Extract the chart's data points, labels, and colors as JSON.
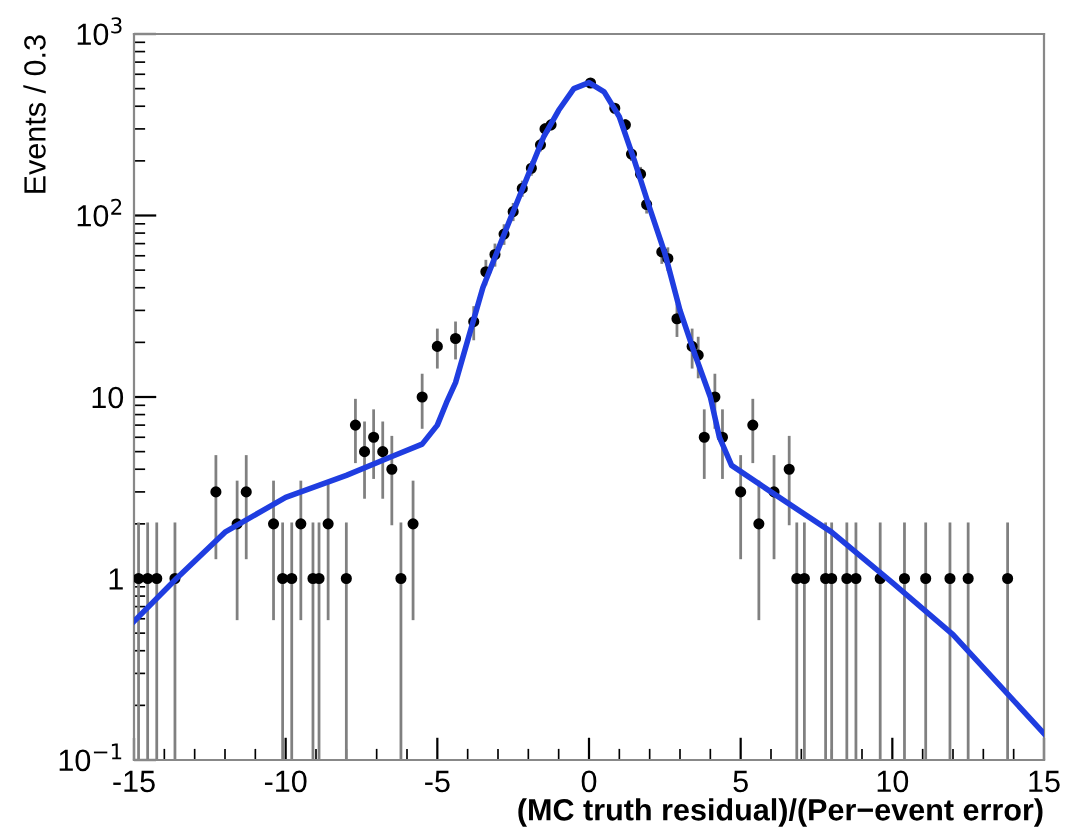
{
  "chart_data": {
    "type": "scatter",
    "xlabel": "(MC truth residual)/(Per−event error)",
    "ylabel": "Events / 0.3",
    "log": "y",
    "xlim": [
      -15,
      15
    ],
    "ylim": [
      0.1,
      1000
    ],
    "xticks": [
      -15,
      -10,
      -5,
      0,
      5,
      10,
      15
    ],
    "yticks": [
      {
        "value": 0.1,
        "label": "10$^{−1}$"
      },
      1,
      10,
      {
        "value": 100,
        "label": "10$^{2}$"
      },
      {
        "value": 1000,
        "label": "10$^{3}$"
      }
    ],
    "grid": false,
    "legend": false,
    "series": [
      {
        "color": "#000000",
        "marker": "circle",
        "x": [
          -14.85,
          -14.55,
          -14.25,
          -13.65,
          -12.3,
          -11.6,
          -11.3,
          -10.4,
          -10.1,
          -9.8,
          -9.5,
          -9.1,
          -8.9,
          -8.6,
          -8.0,
          -7.7,
          -7.4,
          -7.1,
          -6.8,
          -6.5,
          -6.2,
          -5.8,
          -5.5,
          -5.0,
          -4.4,
          -3.8,
          -3.4,
          -3.1,
          -2.8,
          -2.5,
          -2.2,
          -1.9,
          -1.6,
          -1.45,
          -1.25,
          0.05,
          0.85,
          1.2,
          1.4,
          1.7,
          1.9,
          2.4,
          2.6,
          2.9,
          3.4,
          3.6,
          4.15,
          3.8,
          4.4,
          5.0,
          5.4,
          5.6,
          6.1,
          6.6,
          6.85,
          7.1,
          7.8,
          8.0,
          8.5,
          8.8,
          9.6,
          10.4,
          11.1,
          11.9,
          12.5,
          13.8
        ],
        "values": [
          1,
          1,
          1,
          1,
          3,
          2,
          3,
          2,
          1,
          1,
          2,
          1,
          1,
          2,
          1,
          7,
          5,
          6,
          5,
          4,
          1,
          2,
          10,
          19,
          21,
          26,
          49,
          61,
          79,
          105,
          141,
          182,
          245,
          300,
          316,
          537,
          390,
          316,
          218,
          169,
          115,
          63,
          58,
          27,
          19,
          17,
          10,
          6,
          6,
          3,
          7,
          2,
          3,
          4,
          1,
          1,
          1,
          1,
          1,
          1,
          1,
          1,
          1,
          1,
          1,
          1
        ],
        "errors": [
          [
            0.1,
            2
          ],
          [
            0.1,
            2
          ],
          [
            0.1,
            2
          ],
          [
            0.1,
            2
          ],
          [
            1.3,
            4.7
          ],
          [
            0.6,
            3.4
          ],
          [
            1.3,
            4.7
          ],
          [
            0.6,
            3.4
          ],
          [
            0.1,
            2
          ],
          [
            0.1,
            2
          ],
          [
            0.6,
            3.4
          ],
          [
            0.1,
            2
          ],
          [
            0.1,
            2
          ],
          [
            0.6,
            3.4
          ],
          [
            0.1,
            2
          ],
          2.6,
          2.2,
          2.4,
          2.2,
          2,
          [
            0.1,
            2
          ],
          [
            0.6,
            3.4
          ],
          3.2,
          4.4,
          4.6,
          5.1,
          7,
          7.8,
          8.9,
          10.2,
          11.9,
          13.5,
          15.7,
          17.3,
          17.8,
          23.2,
          19.7,
          17.8,
          14.8,
          13,
          10.7,
          7.9,
          7.6,
          5.2,
          4.4,
          4.1,
          3.2,
          2.4,
          2.4,
          1.7,
          2.6,
          [
            0.6,
            3.4
          ],
          1.7,
          2,
          [
            0.1,
            2
          ],
          [
            0.1,
            2
          ],
          [
            0.1,
            2
          ],
          [
            0.1,
            2
          ],
          [
            0.1,
            2
          ],
          [
            0.1,
            2
          ],
          [
            0.1,
            2
          ],
          [
            0.1,
            2
          ],
          [
            0.1,
            2
          ],
          [
            0.1,
            2
          ],
          [
            0.1,
            2
          ],
          [
            0.1,
            2
          ]
        ]
      },
      {
        "type": "line",
        "color": "#1f3de0",
        "x": [
          -15,
          -13.6,
          -12,
          -10,
          -8,
          -6.5,
          -5.5,
          -5,
          -4.7,
          -4.4,
          -3.5,
          -2.5,
          -1.5,
          -1,
          -0.5,
          0,
          0.5,
          1,
          1.5,
          2,
          2.5,
          3,
          3.5,
          4,
          4.3,
          4.7,
          6,
          8,
          10,
          12,
          15
        ],
        "values": [
          0.58,
          1.0,
          1.8,
          2.8,
          3.7,
          4.7,
          5.5,
          7,
          9.3,
          12,
          40,
          105,
          270,
          380,
          500,
          540,
          480,
          350,
          200,
          110,
          62,
          30,
          17,
          10,
          6,
          4.2,
          3.0,
          1.8,
          0.95,
          0.49,
          0.14
        ]
      }
    ]
  }
}
